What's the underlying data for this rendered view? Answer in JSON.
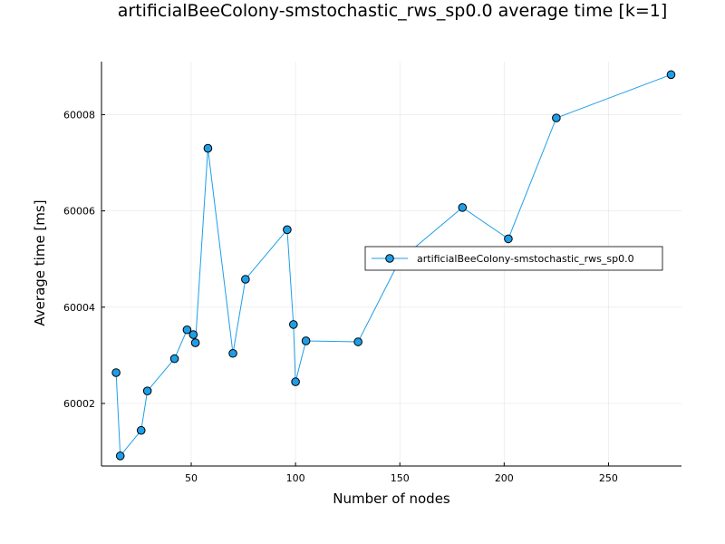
{
  "chart_data": {
    "type": "scatter",
    "title": "artificialBeeColony-smstochastic_rws_sp0.0 average time [k=1]",
    "xlabel": "Number of nodes",
    "ylabel": "Average time [ms]",
    "xlim": [
      7,
      285
    ],
    "ylim": [
      60000.7,
      60009.1
    ],
    "xticks": [
      50,
      100,
      150,
      200,
      250
    ],
    "yticks": [
      60002,
      60004,
      60006,
      60008
    ],
    "grid": true,
    "legend_position": "right",
    "series": [
      {
        "name": "artificialBeeColony-smstochastic_rws_sp0.0",
        "color": "#1f9ee8",
        "marker": "circle",
        "x": [
          14,
          16,
          26,
          29,
          42,
          48,
          51,
          52,
          58,
          70,
          76,
          96,
          99,
          100,
          105,
          130,
          150,
          180,
          202,
          225,
          280
        ],
        "y": [
          60002.64,
          60000.91,
          60001.44,
          60002.26,
          60002.93,
          60003.53,
          60003.43,
          60003.26,
          60007.3,
          60003.04,
          60004.58,
          60005.61,
          60003.64,
          60002.45,
          60003.3,
          60003.28,
          60004.98,
          60006.07,
          60005.42,
          60007.93,
          60008.83
        ]
      }
    ]
  }
}
